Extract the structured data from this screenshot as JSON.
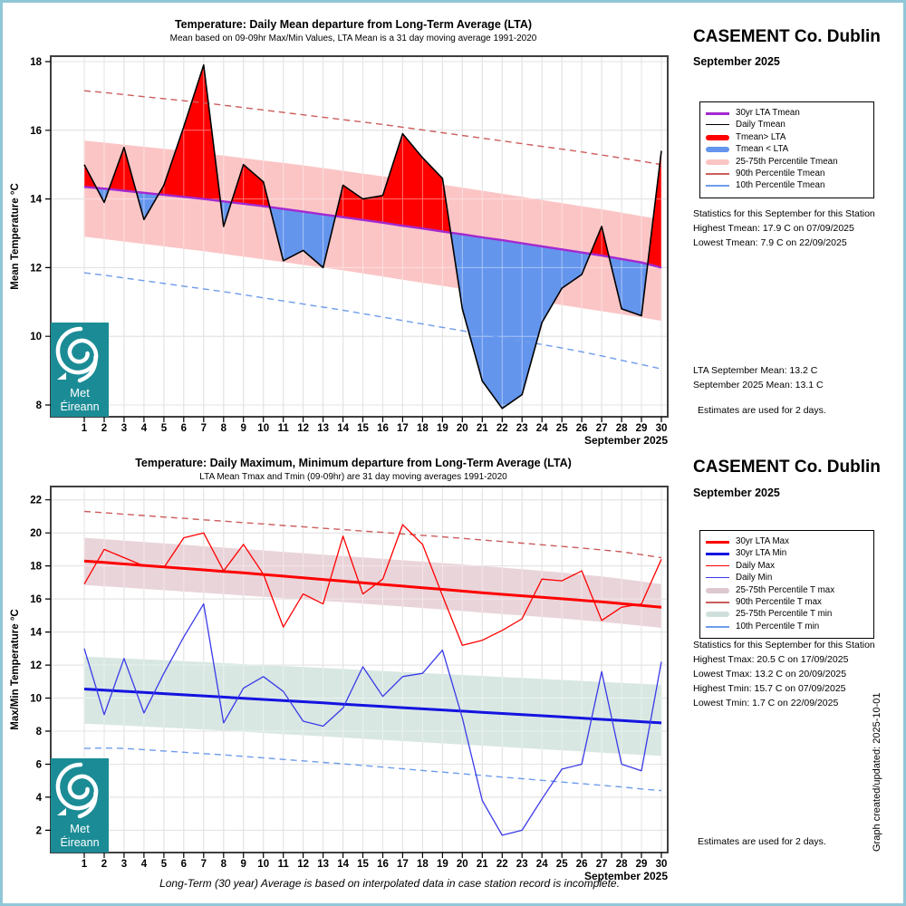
{
  "page": {
    "border_color": "#8FC7D8",
    "footer_note": "Long-Term (30 year) Average is based on interpolated data in case station record is incomplete.",
    "created_note": "Graph created/updated:  2025-10-01"
  },
  "station": {
    "name": "CASEMENT Co. Dublin",
    "month": "September 2025"
  },
  "logo": {
    "line1": "Met",
    "line2": "Éireann",
    "color": "#1B8C96"
  },
  "top_panel": {
    "stats_title": "Statistics for this September for this Station",
    "stats_lines": [
      "Highest Tmean: 17.9 C on 07/09/2025",
      "Lowest Tmean: 7.9 C on 22/09/2025"
    ],
    "lta_lines": [
      "LTA September Mean: 13.2 C",
      "September 2025 Mean: 13.1 C"
    ],
    "estimates_note": "Estimates are used for 2 days."
  },
  "bottom_panel": {
    "stats_title": "Statistics for this September for this Station",
    "stats_lines": [
      "Highest Tmax: 20.5 C on 17/09/2025",
      "Lowest Tmax: 13.2 C on 20/09/2025",
      "Highest Tmin: 15.7 C on 07/09/2025",
      "Lowest Tmin: 1.7 C on 22/09/2025"
    ],
    "estimates_note": "Estimates are used for 2 days."
  },
  "chart_data": [
    {
      "type": "line",
      "title": "Temperature: Daily Mean departure from Long-Term Average (LTA)",
      "subtitle": "Mean based on 09-09hr Max/Min Values, LTA Mean is a 31 day moving average 1991-2020",
      "xlabel": "September 2025",
      "ylabel": "Mean Temperature °C",
      "ylim": [
        8,
        18
      ],
      "y_ticks": [
        8,
        10,
        12,
        14,
        16,
        18
      ],
      "grid": true,
      "legend_position": "right",
      "x": [
        1,
        2,
        3,
        4,
        5,
        6,
        7,
        8,
        9,
        10,
        11,
        12,
        13,
        14,
        15,
        16,
        17,
        18,
        19,
        20,
        21,
        22,
        23,
        24,
        25,
        26,
        27,
        28,
        29,
        30
      ],
      "series": [
        {
          "name": "90th Percentile Tmean",
          "color": "#CD5C5C",
          "dash": true,
          "width": 1.4,
          "values": [
            17.15,
            17.1,
            17.04,
            16.98,
            16.92,
            16.86,
            16.8,
            16.73,
            16.66,
            16.59,
            16.52,
            16.45,
            16.38,
            16.31,
            16.24,
            16.17,
            16.09,
            16.01,
            15.93,
            15.85,
            15.77,
            15.69,
            15.61,
            15.53,
            15.45,
            15.37,
            15.28,
            15.19,
            15.1,
            15.0
          ]
        },
        {
          "name": "10th Percentile Tmean",
          "color": "#6E9CEC",
          "dash": true,
          "width": 1.4,
          "values": [
            11.85,
            11.78,
            11.7,
            11.62,
            11.54,
            11.46,
            11.38,
            11.3,
            11.21,
            11.12,
            11.03,
            10.94,
            10.85,
            10.76,
            10.66,
            10.56,
            10.46,
            10.36,
            10.26,
            10.16,
            10.06,
            9.96,
            9.86,
            9.76,
            9.66,
            9.55,
            9.43,
            9.3,
            9.18,
            9.05
          ]
        },
        {
          "name": "30yr LTA Tmean",
          "color": "#A428D0",
          "width": 2.4,
          "values": [
            14.35,
            14.3,
            14.24,
            14.18,
            14.12,
            14.06,
            14.0,
            13.93,
            13.86,
            13.79,
            13.71,
            13.63,
            13.55,
            13.47,
            13.39,
            13.31,
            13.22,
            13.14,
            13.05,
            12.97,
            12.88,
            12.8,
            12.71,
            12.62,
            12.53,
            12.44,
            12.35,
            12.25,
            12.15,
            12.0
          ]
        },
        {
          "name": "Daily Tmean",
          "color": "#000000",
          "width": 1.6,
          "values": [
            15.0,
            13.9,
            15.5,
            13.4,
            14.4,
            16.1,
            17.9,
            13.2,
            15.0,
            14.5,
            12.2,
            12.5,
            12.0,
            14.4,
            14.0,
            14.1,
            15.9,
            15.2,
            14.6,
            10.8,
            8.7,
            7.9,
            8.3,
            10.4,
            11.4,
            11.8,
            13.2,
            10.8,
            10.6,
            15.4
          ]
        }
      ],
      "bands": [
        {
          "name": "25-75th Percentile Tmean",
          "color": "#FBC5C5",
          "upper": [
            15.7,
            15.64,
            15.58,
            15.52,
            15.46,
            15.4,
            15.33,
            15.26,
            15.19,
            15.12,
            15.05,
            14.98,
            14.9,
            14.82,
            14.74,
            14.66,
            14.58,
            14.5,
            14.42,
            14.33,
            14.24,
            14.15,
            14.06,
            13.97,
            13.88,
            13.79,
            13.7,
            13.6,
            13.5,
            13.4
          ],
          "lower": [
            12.9,
            12.83,
            12.76,
            12.69,
            12.62,
            12.55,
            12.48,
            12.4,
            12.32,
            12.24,
            12.16,
            12.08,
            12.0,
            11.92,
            11.83,
            11.74,
            11.65,
            11.56,
            11.47,
            11.38,
            11.29,
            11.2,
            11.1,
            11.0,
            10.91,
            10.82,
            10.73,
            10.64,
            10.55,
            10.45
          ]
        }
      ],
      "fills": {
        "value": "Daily Tmean",
        "base": "30yr LTA Tmean",
        "above_label": "Tmean> LTA",
        "above_color": "#FF0000",
        "below_label": "Tmean < LTA",
        "below_color": "#6495ED"
      },
      "legend": [
        {
          "swatch": "line",
          "color": "#A428D0",
          "width": 3,
          "label": "30yr LTA Tmean"
        },
        {
          "swatch": "line",
          "color": "#000000",
          "width": 1.5,
          "label": "Daily Tmean"
        },
        {
          "swatch": "bar",
          "color": "#FF0000",
          "label": "Tmean> LTA"
        },
        {
          "swatch": "bar",
          "color": "#6495ED",
          "label": "Tmean < LTA"
        },
        {
          "swatch": "bar",
          "color": "#FBC5C5",
          "label": "25-75th Percentile Tmean"
        },
        {
          "swatch": "dash",
          "color": "#CD5C5C",
          "label": "90th Percentile Tmean"
        },
        {
          "swatch": "dash",
          "color": "#6E9CEC",
          "label": "10th Percentile Tmean"
        }
      ]
    },
    {
      "type": "line",
      "title": "Temperature: Daily Maximum, Minimum departure from Long-Term Average (LTA)",
      "subtitle": "LTA Mean Tmax and Tmin (09-09hr) are 31 day moving averages 1991-2020",
      "xlabel": "September 2025",
      "ylabel": "Max/Min Temperature °C",
      "ylim": [
        2,
        22
      ],
      "y_ticks": [
        2,
        4,
        6,
        8,
        10,
        12,
        14,
        16,
        18,
        20,
        22
      ],
      "grid": true,
      "legend_position": "right",
      "x": [
        1,
        2,
        3,
        4,
        5,
        6,
        7,
        8,
        9,
        10,
        11,
        12,
        13,
        14,
        15,
        16,
        17,
        18,
        19,
        20,
        21,
        22,
        23,
        24,
        25,
        26,
        27,
        28,
        29,
        30
      ],
      "series": [
        {
          "name": "90th Percentile T max",
          "color": "#CD5C5C",
          "dash": true,
          "width": 1.4,
          "values": [
            21.3,
            21.22,
            21.13,
            21.05,
            20.96,
            20.88,
            20.79,
            20.71,
            20.62,
            20.54,
            20.45,
            20.37,
            20.28,
            20.2,
            20.11,
            20.03,
            19.94,
            19.85,
            19.76,
            19.67,
            19.57,
            19.48,
            19.38,
            19.28,
            19.18,
            19.08,
            18.97,
            18.86,
            18.68,
            18.5
          ]
        },
        {
          "name": "10th Percentile T min",
          "color": "#6E9CEC",
          "dash": true,
          "width": 1.4,
          "values": [
            6.95,
            6.98,
            6.95,
            6.88,
            6.8,
            6.72,
            6.64,
            6.56,
            6.47,
            6.38,
            6.29,
            6.2,
            6.11,
            6.02,
            5.92,
            5.82,
            5.72,
            5.62,
            5.52,
            5.42,
            5.32,
            5.22,
            5.12,
            5.02,
            4.92,
            4.82,
            4.72,
            4.62,
            4.5,
            4.4
          ]
        },
        {
          "name": "30yr LTA Max",
          "color": "#FF0000",
          "width": 3,
          "values": [
            18.3,
            18.21,
            18.12,
            18.03,
            17.94,
            17.85,
            17.76,
            17.67,
            17.58,
            17.48,
            17.38,
            17.28,
            17.18,
            17.08,
            16.98,
            16.88,
            16.78,
            16.68,
            16.58,
            16.48,
            16.38,
            16.28,
            16.19,
            16.1,
            16.01,
            15.92,
            15.83,
            15.72,
            15.61,
            15.5
          ]
        },
        {
          "name": "30yr LTA Min",
          "color": "#1414E0",
          "width": 3,
          "values": [
            10.55,
            10.48,
            10.41,
            10.34,
            10.27,
            10.2,
            10.13,
            10.06,
            9.99,
            9.92,
            9.85,
            9.78,
            9.71,
            9.63,
            9.56,
            9.49,
            9.42,
            9.35,
            9.28,
            9.21,
            9.14,
            9.07,
            9.0,
            8.93,
            8.86,
            8.79,
            8.71,
            8.64,
            8.57,
            8.5
          ]
        },
        {
          "name": "Daily Max",
          "color": "#FF0000",
          "width": 1.3,
          "values": [
            16.9,
            19.0,
            18.5,
            18.0,
            17.9,
            19.7,
            20.0,
            17.7,
            19.3,
            17.5,
            14.3,
            16.3,
            15.7,
            19.8,
            16.3,
            17.2,
            20.5,
            19.3,
            16.2,
            13.2,
            13.5,
            14.1,
            14.8,
            17.2,
            17.1,
            17.7,
            14.7,
            15.5,
            15.7,
            18.4
          ]
        },
        {
          "name": "Daily Min",
          "color": "#3A3AE8",
          "width": 1.3,
          "values": [
            13.0,
            9.0,
            12.4,
            9.1,
            11.5,
            13.7,
            15.7,
            8.5,
            10.6,
            11.3,
            10.4,
            8.6,
            8.3,
            9.4,
            11.9,
            10.1,
            11.3,
            11.5,
            12.9,
            8.8,
            3.8,
            1.7,
            2.0,
            3.9,
            5.7,
            6.0,
            11.6,
            6.0,
            5.6,
            12.2
          ]
        }
      ],
      "bands": [
        {
          "name": "25-75th Percentile T max",
          "color": "#E9D4D9",
          "upper": [
            19.7,
            19.62,
            19.53,
            19.45,
            19.36,
            19.28,
            19.19,
            19.11,
            19.02,
            18.94,
            18.85,
            18.77,
            18.68,
            18.6,
            18.51,
            18.43,
            18.34,
            18.26,
            18.17,
            18.09,
            18.0,
            17.9,
            17.8,
            17.7,
            17.6,
            17.48,
            17.36,
            17.22,
            17.06,
            16.9
          ],
          "lower": [
            16.85,
            16.77,
            16.69,
            16.61,
            16.53,
            16.45,
            16.37,
            16.29,
            16.21,
            16.13,
            16.05,
            15.97,
            15.89,
            15.81,
            15.72,
            15.63,
            15.54,
            15.45,
            15.36,
            15.27,
            15.18,
            15.09,
            15.0,
            14.91,
            14.82,
            14.72,
            14.61,
            14.5,
            14.38,
            14.25
          ]
        },
        {
          "name": "25-75th Percentile T min",
          "color": "#D8E7E2",
          "upper": [
            12.5,
            12.45,
            12.4,
            12.35,
            12.3,
            12.24,
            12.18,
            12.12,
            12.06,
            12.0,
            11.94,
            11.88,
            11.82,
            11.76,
            11.7,
            11.64,
            11.58,
            11.52,
            11.46,
            11.4,
            11.34,
            11.28,
            11.22,
            11.16,
            11.1,
            11.04,
            10.98,
            10.92,
            10.86,
            10.8
          ],
          "lower": [
            8.45,
            8.4,
            8.34,
            8.28,
            8.22,
            8.16,
            8.1,
            8.03,
            7.96,
            7.89,
            7.82,
            7.75,
            7.68,
            7.61,
            7.54,
            7.47,
            7.4,
            7.33,
            7.26,
            7.19,
            7.12,
            7.05,
            6.98,
            6.91,
            6.84,
            6.77,
            6.7,
            6.63,
            6.57,
            6.5
          ]
        }
      ],
      "legend": [
        {
          "swatch": "line",
          "color": "#FF0000",
          "width": 3,
          "label": "30yr LTA Max"
        },
        {
          "swatch": "line",
          "color": "#1414E0",
          "width": 3,
          "label": "30yr LTA Min"
        },
        {
          "swatch": "line",
          "color": "#FF0000",
          "width": 1.5,
          "label": "Daily Max"
        },
        {
          "swatch": "line",
          "color": "#3A3AE8",
          "width": 1.5,
          "label": "Daily Min"
        },
        {
          "swatch": "bar",
          "color": "#DCC8CE",
          "label": "25-75th Percentile T max"
        },
        {
          "swatch": "dash",
          "color": "#CD5C5C",
          "label": "90th Percentile T max"
        },
        {
          "swatch": "bar",
          "color": "#CFE0DC",
          "label": "25-75th Percentile T min"
        },
        {
          "swatch": "dash",
          "color": "#6E9CEC",
          "label": "10th Percentile T min"
        }
      ]
    }
  ]
}
